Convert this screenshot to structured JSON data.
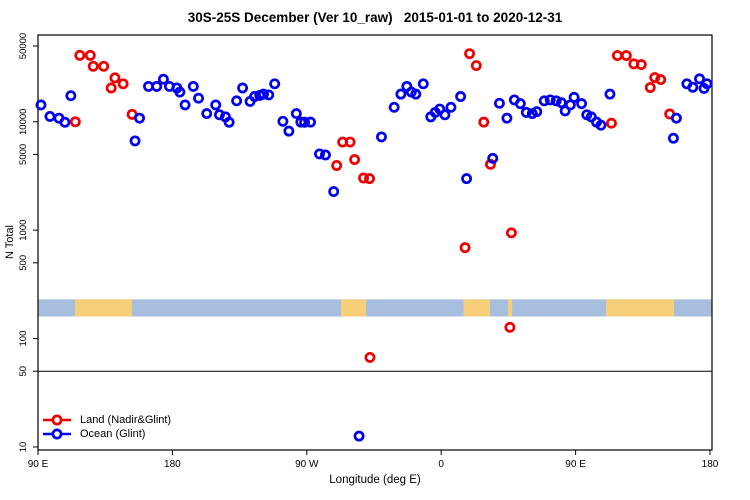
{
  "chart_data": {
    "type": "scatter",
    "title": "30S-25S December (Ver 10_raw)   2015-01-01 to 2020-12-31",
    "xlabel": "Longitude (deg E)",
    "ylabel": "N Total",
    "x_axis": {
      "range_deg": [
        90,
        540
      ],
      "ticks_deg": [
        90,
        180,
        270,
        360,
        450,
        540
      ],
      "tick_labels": [
        "90 E",
        "180",
        "90 W",
        "0",
        "90 E",
        "180"
      ]
    },
    "y_axis": {
      "scale": "log10",
      "ticks": [
        10,
        50,
        100,
        500,
        1000,
        5000,
        10000,
        50000
      ],
      "tick_labels": [
        "10",
        "50",
        "100",
        "500",
        "1000",
        "5000",
        "10000",
        "50000"
      ],
      "range": [
        9.5,
        63000
      ]
    },
    "reference_line_y": 50,
    "coast_band": {
      "ocean_color": "#a8bedf",
      "land_color": "#f7cf79",
      "value_range": [
        160,
        230
      ],
      "land_segments_deg": [
        [
          114.8,
          152.9
        ],
        [
          292.9,
          309.6
        ],
        [
          375.0,
          392.7
        ],
        [
          404.8,
          407.5
        ],
        [
          470.4,
          515.9
        ]
      ]
    },
    "series": [
      {
        "name": "Land (Nadir&Glint)",
        "color": "#ee0000",
        "points": [
          [
            118,
            41000
          ],
          [
            125,
            41000
          ],
          [
            127,
            32500
          ],
          [
            134,
            32500
          ],
          [
            141.5,
            25400
          ],
          [
            147,
            22400
          ],
          [
            139,
            20500
          ],
          [
            115,
            10000
          ],
          [
            153,
            11700
          ],
          [
            294,
            6500
          ],
          [
            299,
            6500
          ],
          [
            290,
            3950
          ],
          [
            302,
            4480
          ],
          [
            308,
            3030
          ],
          [
            312,
            2990
          ],
          [
            379,
            42500
          ],
          [
            383.5,
            33000
          ],
          [
            388.5,
            9930
          ],
          [
            393,
            4050
          ],
          [
            376,
            690
          ],
          [
            407,
            945
          ],
          [
            406,
            127
          ],
          [
            312.3,
            67
          ],
          [
            474,
            9700
          ],
          [
            478,
            40800
          ],
          [
            484,
            40800
          ],
          [
            489,
            34200
          ],
          [
            494,
            33700
          ],
          [
            503,
            25600
          ],
          [
            507,
            24500
          ],
          [
            500,
            20700
          ],
          [
            513,
            11800
          ]
        ]
      },
      {
        "name": "Ocean (Glint)",
        "color": "#0000ee",
        "points": [
          [
            112,
            17400
          ],
          [
            92,
            14300
          ],
          [
            98,
            11200
          ],
          [
            104,
            10800
          ],
          [
            108,
            9900
          ],
          [
            164,
            21200
          ],
          [
            155,
            6660
          ],
          [
            158,
            10800
          ],
          [
            169.5,
            21200
          ],
          [
            174,
            24700
          ],
          [
            178,
            21200
          ],
          [
            183,
            20500
          ],
          [
            185,
            18800
          ],
          [
            188.5,
            14300
          ],
          [
            194,
            21200
          ],
          [
            197.5,
            16500
          ],
          [
            203,
            11900
          ],
          [
            209,
            14300
          ],
          [
            211.5,
            11600
          ],
          [
            215.5,
            11100
          ],
          [
            218,
            9900
          ],
          [
            223,
            15600
          ],
          [
            227,
            20500
          ],
          [
            232,
            15400
          ],
          [
            235,
            17100
          ],
          [
            238.5,
            17500
          ],
          [
            241,
            18000
          ],
          [
            244.5,
            17700
          ],
          [
            248.5,
            22400
          ],
          [
            254,
            10100
          ],
          [
            258,
            8200
          ],
          [
            263,
            11900
          ],
          [
            266,
            9930
          ],
          [
            268.5,
            9900
          ],
          [
            272.5,
            9930
          ],
          [
            278.5,
            5050
          ],
          [
            282.5,
            4940
          ],
          [
            320,
            7250
          ],
          [
            288,
            2270
          ],
          [
            305,
            12.6
          ],
          [
            328.5,
            13600
          ],
          [
            333,
            18000
          ],
          [
            337,
            21200
          ],
          [
            340,
            18800
          ],
          [
            343,
            18000
          ],
          [
            348,
            22400
          ],
          [
            353,
            11100
          ],
          [
            356,
            12200
          ],
          [
            359,
            13100
          ],
          [
            362.5,
            11600
          ],
          [
            366.5,
            13600
          ],
          [
            373,
            17100
          ],
          [
            377,
            2990
          ],
          [
            394.5,
            4600
          ],
          [
            399,
            14800
          ],
          [
            404,
            10800
          ],
          [
            409,
            15900
          ],
          [
            413,
            14700
          ],
          [
            417,
            12200
          ],
          [
            421,
            11900
          ],
          [
            424,
            12400
          ],
          [
            429,
            15600
          ],
          [
            433,
            15900
          ],
          [
            437,
            15600
          ],
          [
            440.5,
            15000
          ],
          [
            443,
            12600
          ],
          [
            446.5,
            14300
          ],
          [
            449,
            16800
          ],
          [
            454,
            14700
          ],
          [
            457.5,
            11600
          ],
          [
            460.5,
            11100
          ],
          [
            464,
            9930
          ],
          [
            467,
            9300
          ],
          [
            473,
            18000
          ],
          [
            515.5,
            7050
          ],
          [
            517.5,
            10800
          ],
          [
            524.5,
            22400
          ],
          [
            528.5,
            20800
          ],
          [
            533,
            24900
          ],
          [
            536,
            20300
          ],
          [
            538,
            22400
          ]
        ]
      }
    ],
    "legend": {
      "items": [
        {
          "label": "Land (Nadir&Glint)"
        },
        {
          "label": "Ocean (Glint)"
        }
      ]
    }
  }
}
